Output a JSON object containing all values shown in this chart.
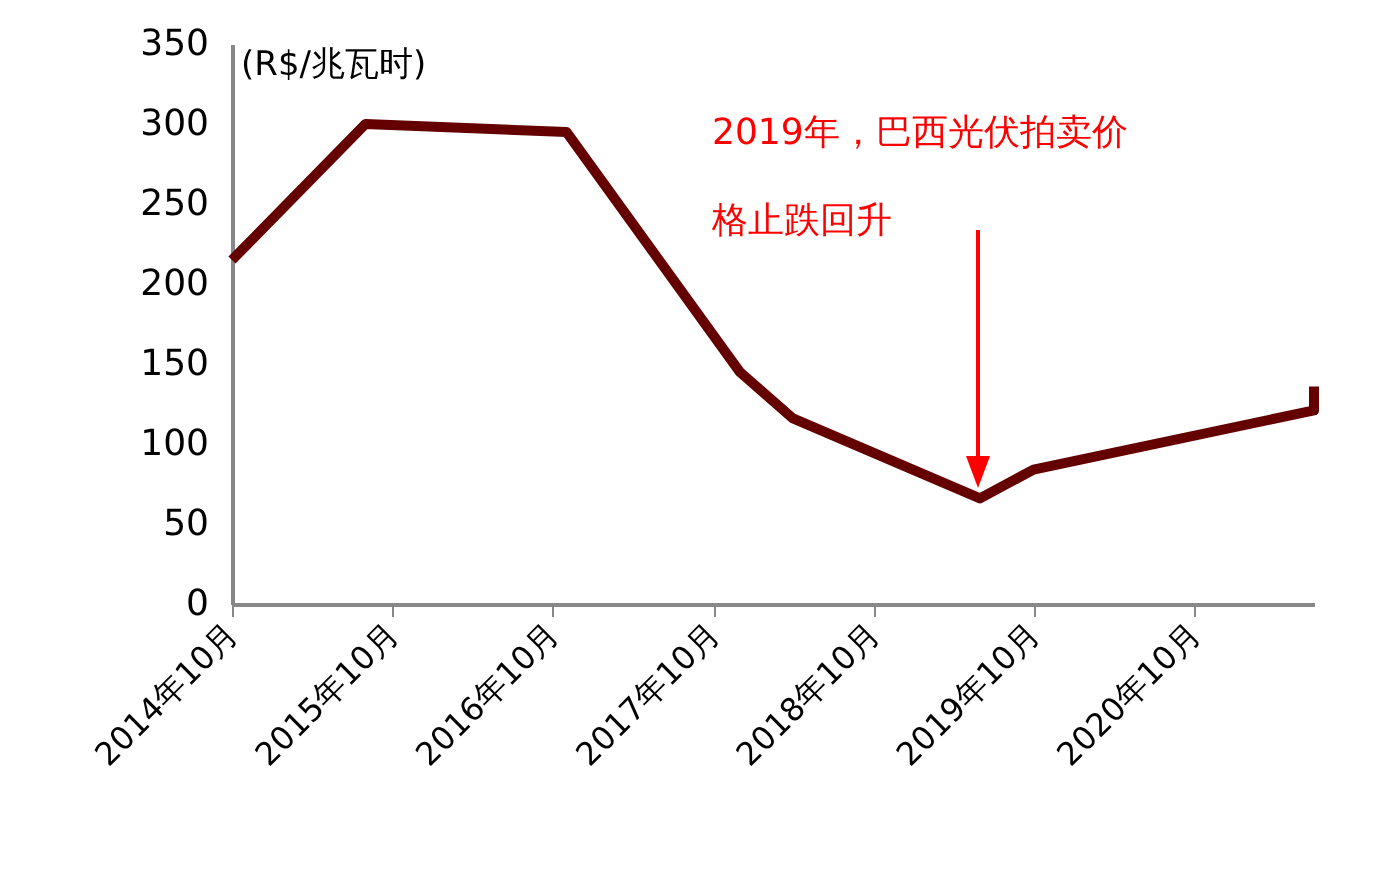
{
  "chart_data": {
    "type": "line",
    "ylabel": "(R$/兆瓦时)",
    "x": [
      "2014-10",
      "2015-08",
      "2016-11",
      "2017-12",
      "2018-04",
      "2019-06",
      "2019-10",
      "2021-07",
      "2021-07"
    ],
    "series": [
      {
        "color": "#640000",
        "values": [
          215,
          300,
          295,
          145,
          116,
          66,
          84,
          121,
          136
        ]
      }
    ],
    "xlim": [
      "2014-10",
      "2021-07"
    ],
    "xticks": [
      {
        "value": "2014-10",
        "label": "2014年10月"
      },
      {
        "value": "2015-10",
        "label": "2015年10月"
      },
      {
        "value": "2016-10",
        "label": "2016年10月"
      },
      {
        "value": "2017-10",
        "label": "2017年10月"
      },
      {
        "value": "2018-10",
        "label": "2018年10月"
      },
      {
        "value": "2019-10",
        "label": "2019年10月"
      },
      {
        "value": "2020-10",
        "label": "2020年10月"
      }
    ],
    "ylim": [
      0,
      350
    ],
    "yticks": [
      0,
      50,
      100,
      150,
      200,
      250,
      300,
      350
    ],
    "annotations": [
      "2019年，巴西光伏拍卖价",
      "格止跌回升"
    ],
    "grid": false,
    "marker": "none",
    "line_style": "solid"
  }
}
